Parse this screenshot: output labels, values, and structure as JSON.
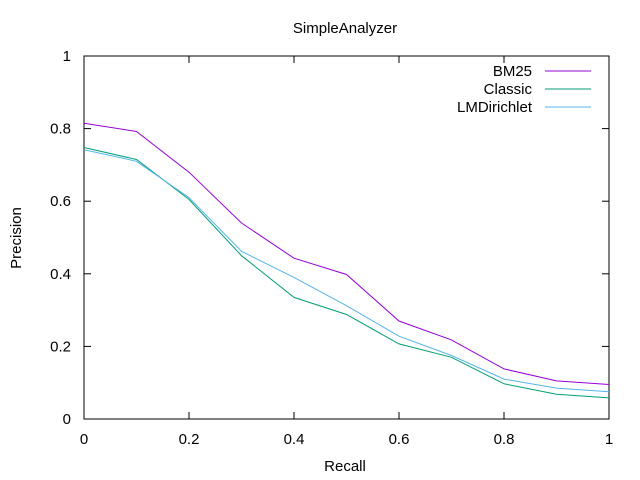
{
  "chart_data": {
    "type": "line",
    "title": "SimpleAnalyzer",
    "xlabel": "Recall",
    "ylabel": "Precision",
    "xlim": [
      0,
      1
    ],
    "ylim": [
      0,
      1
    ],
    "xticks": [
      "0",
      "0.2",
      "0.4",
      "0.6",
      "0.8",
      "1"
    ],
    "yticks": [
      "0",
      "0.2",
      "0.4",
      "0.6",
      "0.8",
      "1"
    ],
    "x": [
      0,
      0.1,
      0.2,
      0.3,
      0.4,
      0.5,
      0.6,
      0.7,
      0.8,
      0.9,
      1.0
    ],
    "legend_position": "top-right",
    "grid": false,
    "series": [
      {
        "name": "BM25",
        "color": "#9400d3",
        "values": [
          0.815,
          0.792,
          0.68,
          0.54,
          0.443,
          0.398,
          0.27,
          0.218,
          0.138,
          0.105,
          0.095
        ]
      },
      {
        "name": "Classic",
        "color": "#009e73",
        "values": [
          0.748,
          0.715,
          0.605,
          0.45,
          0.335,
          0.288,
          0.207,
          0.17,
          0.097,
          0.068,
          0.058
        ]
      },
      {
        "name": "LMDirichlet",
        "color": "#56b4e9",
        "values": [
          0.742,
          0.71,
          0.61,
          0.462,
          0.39,
          0.312,
          0.228,
          0.175,
          0.11,
          0.085,
          0.075
        ]
      }
    ]
  }
}
